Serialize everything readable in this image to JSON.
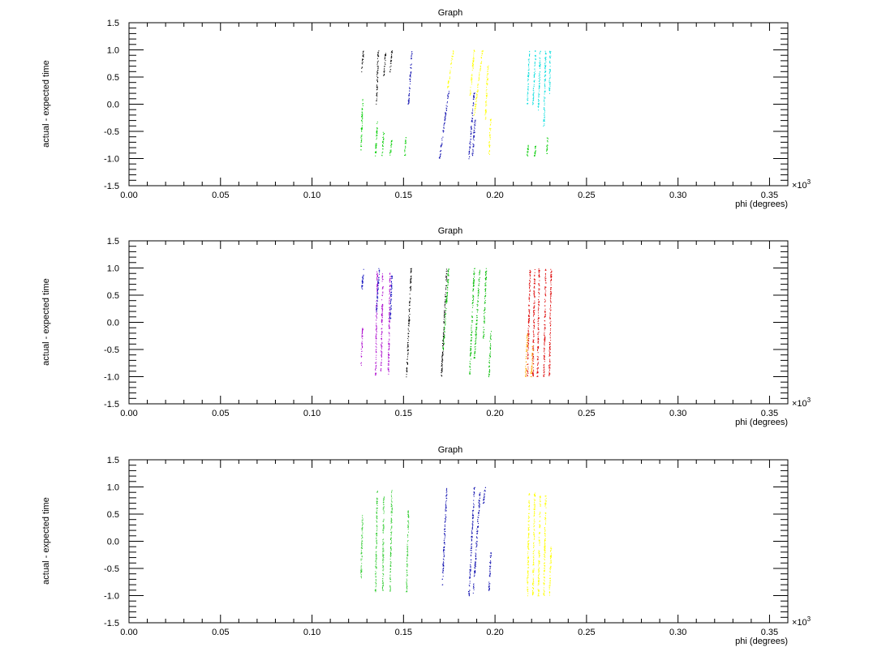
{
  "chart_data": [
    {
      "type": "scatter",
      "title": "Graph",
      "xlabel": "phi (degrees)",
      "ylabel": "actual - expected time",
      "x_multiplier": "×10",
      "x_multiplier_exp": "3",
      "xlim": [
        0,
        0.36
      ],
      "ylim": [
        -1.5,
        1.5
      ],
      "x_ticks": [
        "0.00",
        "0.05",
        "0.10",
        "0.15",
        "0.20",
        "0.25",
        "0.30",
        "0.35"
      ],
      "y_ticks": [
        "-1.5",
        "-1.0",
        "-0.5",
        "0.0",
        "0.5",
        "1.0",
        "1.5"
      ],
      "grid": false,
      "series": [
        {
          "color": "#00cc00",
          "segments": [
            [
              0.1265,
              -0.85,
              0.1275,
              0.1
            ],
            [
              0.1345,
              -0.95,
              0.1355,
              -0.3
            ],
            [
              0.138,
              -0.95,
              0.139,
              -0.5
            ],
            [
              0.1425,
              -0.95,
              0.1435,
              -0.6
            ],
            [
              0.1505,
              -0.95,
              0.151,
              -0.6
            ],
            [
              0.2175,
              -0.95,
              0.218,
              -0.75
            ],
            [
              0.2215,
              -0.95,
              0.222,
              -0.75
            ],
            [
              0.228,
              -0.95,
              0.2285,
              -0.6
            ]
          ]
        },
        {
          "color": "#000000",
          "segments": [
            [
              0.127,
              0.6,
              0.128,
              1.0
            ],
            [
              0.135,
              0.0,
              0.136,
              1.0
            ],
            [
              0.139,
              0.5,
              0.14,
              0.95
            ],
            [
              0.1425,
              0.6,
              0.1435,
              1.0
            ]
          ]
        },
        {
          "color": "#0000aa",
          "segments": [
            [
              0.1525,
              0.0,
              0.1545,
              1.0
            ],
            [
              0.1695,
              -1.0,
              0.1745,
              0.25
            ],
            [
              0.1855,
              -1.0,
              0.1885,
              0.25
            ],
            [
              0.1875,
              -0.95,
              0.189,
              -0.25
            ]
          ]
        },
        {
          "color": "#ffff00",
          "segments": [
            [
              0.174,
              0.3,
              0.177,
              1.0
            ],
            [
              0.186,
              0.1,
              0.1885,
              1.0
            ],
            [
              0.1885,
              -0.2,
              0.193,
              1.0
            ],
            [
              0.1945,
              -0.3,
              0.196,
              0.75
            ],
            [
              0.1965,
              -0.95,
              0.1975,
              -0.25
            ]
          ]
        },
        {
          "color": "#00dddd",
          "segments": [
            [
              0.2175,
              0.0,
              0.2185,
              1.0
            ],
            [
              0.2205,
              0.0,
              0.222,
              1.0
            ],
            [
              0.2235,
              -0.1,
              0.2245,
              1.0
            ],
            [
              0.2265,
              -0.4,
              0.2275,
              1.0
            ],
            [
              0.2295,
              0.2,
              0.23,
              1.0
            ]
          ]
        }
      ]
    },
    {
      "type": "scatter",
      "title": "Graph",
      "xlabel": "phi (degrees)",
      "ylabel": "actual - expected time",
      "x_multiplier": "×10",
      "x_multiplier_exp": "3",
      "xlim": [
        0,
        0.36
      ],
      "ylim": [
        -1.5,
        1.5
      ],
      "x_ticks": [
        "0.00",
        "0.05",
        "0.10",
        "0.15",
        "0.20",
        "0.25",
        "0.30",
        "0.35"
      ],
      "y_ticks": [
        "-1.5",
        "-1.0",
        "-0.5",
        "0.0",
        "0.5",
        "1.0",
        "1.5"
      ],
      "grid": false,
      "series": [
        {
          "color": "#aa00cc",
          "segments": [
            [
              0.1265,
              -0.8,
              0.1275,
              -0.1
            ],
            [
              0.1345,
              -1.0,
              0.1355,
              0.95
            ],
            [
              0.1375,
              -0.9,
              0.1385,
              0.9
            ],
            [
              0.1415,
              -0.95,
              0.1425,
              0.95
            ]
          ]
        },
        {
          "color": "#0000bb",
          "segments": [
            [
              0.127,
              0.6,
              0.128,
              1.0
            ],
            [
              0.135,
              0.2,
              0.1365,
              1.0
            ],
            [
              0.1425,
              0.0,
              0.1435,
              0.9
            ]
          ]
        },
        {
          "color": "#000000",
          "segments": [
            [
              0.1515,
              -1.0,
              0.154,
              1.0
            ],
            [
              0.1705,
              -1.0,
              0.1735,
              1.0
            ]
          ]
        },
        {
          "color": "#00bb00",
          "segments": [
            [
              0.1715,
              -0.5,
              0.1745,
              1.0
            ],
            [
              0.186,
              -0.95,
              0.1885,
              1.0
            ],
            [
              0.1885,
              -0.7,
              0.1915,
              1.0
            ],
            [
              0.1935,
              -0.3,
              0.195,
              1.0
            ],
            [
              0.1965,
              -1.0,
              0.1975,
              -0.15
            ]
          ]
        },
        {
          "color": "#dd0000",
          "segments": [
            [
              0.2175,
              -1.0,
              0.219,
              1.0
            ],
            [
              0.2205,
              -1.0,
              0.2215,
              1.0
            ],
            [
              0.223,
              -1.0,
              0.224,
              1.0
            ],
            [
              0.2265,
              -1.0,
              0.2275,
              1.0
            ],
            [
              0.2295,
              -1.0,
              0.2305,
              1.0
            ]
          ]
        },
        {
          "color": "#ffaa00",
          "segments": [
            [
              0.2165,
              -1.0,
              0.2175,
              -0.2
            ],
            [
              0.2195,
              -1.0,
              0.2205,
              -0.4
            ]
          ]
        }
      ]
    },
    {
      "type": "scatter",
      "title": "Graph",
      "xlabel": "phi (degrees)",
      "ylabel": "actual - expected time",
      "x_multiplier": "×10",
      "x_multiplier_exp": "3",
      "xlim": [
        0,
        0.36
      ],
      "ylim": [
        -1.5,
        1.5
      ],
      "x_ticks": [
        "0.00",
        "0.05",
        "0.10",
        "0.15",
        "0.20",
        "0.25",
        "0.30",
        "0.35"
      ],
      "y_ticks": [
        "-1.5",
        "-1.0",
        "-0.5",
        "0.0",
        "0.5",
        "1.0",
        "1.5"
      ],
      "grid": false,
      "series": [
        {
          "color": "#33cc33",
          "segments": [
            [
              0.1265,
              -0.7,
              0.1275,
              0.5
            ],
            [
              0.1345,
              -0.95,
              0.1355,
              0.95
            ],
            [
              0.1385,
              -0.9,
              0.139,
              0.9
            ],
            [
              0.1425,
              -0.95,
              0.1435,
              0.95
            ],
            [
              0.1515,
              -0.95,
              0.1525,
              0.6
            ]
          ]
        },
        {
          "color": "#0000aa",
          "segments": [
            [
              0.171,
              -0.8,
              0.1735,
              1.0
            ],
            [
              0.1855,
              -1.0,
              0.1885,
              1.0
            ],
            [
              0.188,
              -0.95,
              0.1915,
              0.9
            ],
            [
              0.1935,
              0.7,
              0.1945,
              1.0
            ],
            [
              0.1965,
              -0.9,
              0.1975,
              -0.2
            ]
          ]
        },
        {
          "color": "#ffff00",
          "segments": [
            [
              0.2175,
              -1.0,
              0.2185,
              0.9
            ],
            [
              0.2205,
              -1.0,
              0.2215,
              0.9
            ],
            [
              0.2235,
              -1.0,
              0.2245,
              0.85
            ],
            [
              0.2265,
              -1.0,
              0.2275,
              0.9
            ],
            [
              0.2295,
              -1.0,
              0.2305,
              -0.1
            ]
          ]
        }
      ]
    }
  ]
}
